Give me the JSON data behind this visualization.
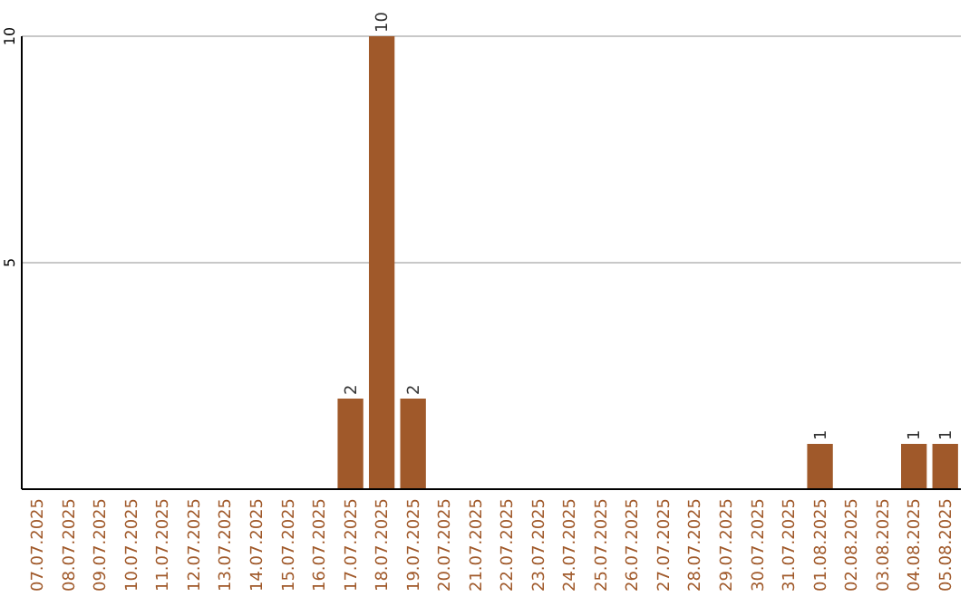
{
  "chart_data": {
    "type": "bar",
    "categories": [
      "07.07.2025",
      "08.07.2025",
      "09.07.2025",
      "10.07.2025",
      "11.07.2025",
      "12.07.2025",
      "13.07.2025",
      "14.07.2025",
      "15.07.2025",
      "16.07.2025",
      "17.07.2025",
      "18.07.2025",
      "19.07.2025",
      "20.07.2025",
      "21.07.2025",
      "22.07.2025",
      "23.07.2025",
      "24.07.2025",
      "25.07.2025",
      "26.07.2025",
      "27.07.2025",
      "28.07.2025",
      "29.07.2025",
      "30.07.2025",
      "31.07.2025",
      "01.08.2025",
      "02.08.2025",
      "03.08.2025",
      "04.08.2025",
      "05.08.2025"
    ],
    "values": [
      0,
      0,
      0,
      0,
      0,
      0,
      0,
      0,
      0,
      0,
      2,
      10,
      2,
      0,
      0,
      0,
      0,
      0,
      0,
      0,
      0,
      0,
      0,
      0,
      0,
      1,
      0,
      0,
      1,
      1
    ],
    "value_labels": [
      null,
      null,
      null,
      null,
      null,
      null,
      null,
      null,
      null,
      null,
      "2",
      "10",
      "2",
      null,
      null,
      null,
      null,
      null,
      null,
      null,
      null,
      null,
      null,
      null,
      null,
      "1",
      null,
      null,
      "1",
      "1"
    ],
    "color": "#a0592a",
    "ylim": [
      0,
      10
    ],
    "yticks": [
      5,
      10
    ],
    "grid": "y"
  }
}
